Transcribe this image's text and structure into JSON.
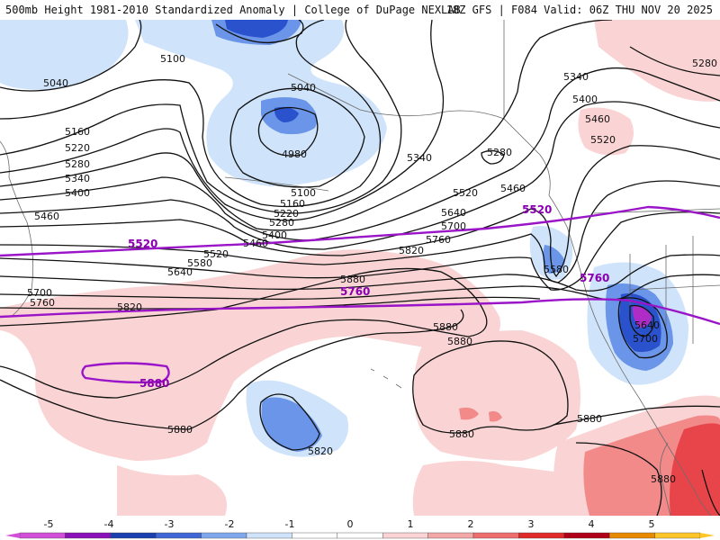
{
  "header": {
    "title_left": "500mb Height 1981-2010 Standardized Anomaly | College of DuPage NEXLAB",
    "title_right": "18Z GFS | F084 Valid: 06Z THU NOV 20 2025"
  },
  "colors": {
    "ocean": "#ffffff",
    "neg_light": "#cfe3fa",
    "neg_mid": "#6a95e8",
    "neg_dark": "#2a52cc",
    "neg_deep": "#b02cc6",
    "pos_light": "#fad4d4",
    "pos_mid": "#f28a8a",
    "pos_dark": "#e8454a",
    "contour": "#111111",
    "purple_contour": "#9a14c8",
    "coast": "#6b6b6b"
  },
  "contour_labels": [
    {
      "text": "5040"
    },
    {
      "text": "5100"
    },
    {
      "text": "5040"
    },
    {
      "text": "4980"
    },
    {
      "text": "5160"
    },
    {
      "text": "5220"
    },
    {
      "text": "5280"
    },
    {
      "text": "5340"
    },
    {
      "text": "5400"
    },
    {
      "text": "5460"
    },
    {
      "text": "5100"
    },
    {
      "text": "5160"
    },
    {
      "text": "5220"
    },
    {
      "text": "5280"
    },
    {
      "text": "5400"
    },
    {
      "text": "5460"
    },
    {
      "text": "5520"
    },
    {
      "text": "5580"
    },
    {
      "text": "5640"
    },
    {
      "text": "5700"
    },
    {
      "text": "5760"
    },
    {
      "text": "5820"
    },
    {
      "text": "5340"
    },
    {
      "text": "5280"
    },
    {
      "text": "5520"
    },
    {
      "text": "5460"
    },
    {
      "text": "5640"
    },
    {
      "text": "5700"
    },
    {
      "text": "5760"
    },
    {
      "text": "5820"
    },
    {
      "text": "5880"
    },
    {
      "text": "5880"
    },
    {
      "text": "5880"
    },
    {
      "text": "5820"
    },
    {
      "text": "5880"
    },
    {
      "text": "5880"
    },
    {
      "text": "5880"
    },
    {
      "text": "5580"
    },
    {
      "text": "5640"
    },
    {
      "text": "5700"
    },
    {
      "text": "5340"
    },
    {
      "text": "5400"
    },
    {
      "text": "5460"
    },
    {
      "text": "5520"
    },
    {
      "text": "5280"
    }
  ],
  "purple_labels": [
    {
      "text": "5520"
    },
    {
      "text": "5520"
    },
    {
      "text": "5760"
    },
    {
      "text": "5760"
    },
    {
      "text": "5880"
    }
  ],
  "colorbar": {
    "ticks": [
      "-5",
      "-4",
      "-3",
      "-2",
      "-1",
      "0",
      "1",
      "2",
      "3",
      "4",
      "5"
    ],
    "colors": [
      "#d24fd9",
      "#8a10b8",
      "#1a3fae",
      "#3f68d6",
      "#7fa7ee",
      "#cfe3fa",
      "#ffffff",
      "#ffffff",
      "#fad4d4",
      "#f4a7a7",
      "#ee6e6e",
      "#e02a2a",
      "#b00018",
      "#e88a00",
      "#ffc62a"
    ]
  }
}
